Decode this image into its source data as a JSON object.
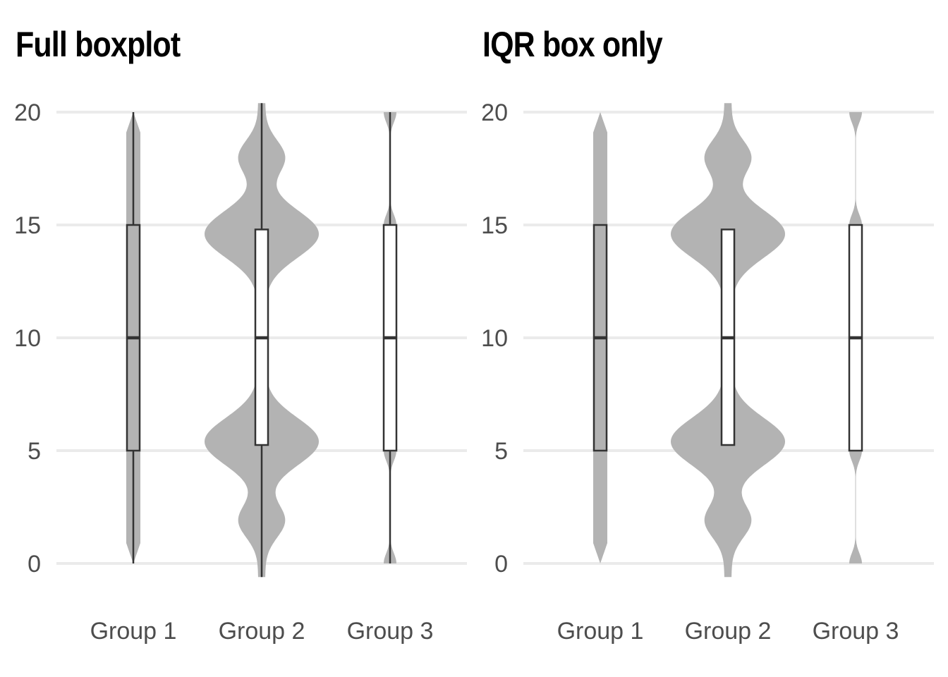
{
  "chart_data": [
    {
      "type": "violin",
      "title": "Full boxplot",
      "categories": [
        "Group 1",
        "Group 2",
        "Group 3"
      ],
      "yticks": [
        0,
        5,
        10,
        15,
        20
      ],
      "ylim": [
        -0.6,
        20.4
      ],
      "grid": "horizontal",
      "boxplot": "full",
      "groups": [
        {
          "name": "Group 1",
          "min": 0,
          "q1": 5,
          "median": 10,
          "q3": 15,
          "max": 20,
          "box_fill": "#b3b3b3",
          "distribution": "uniform"
        },
        {
          "name": "Group 2",
          "min": -0.6,
          "q1": 5.25,
          "median": 10,
          "q3": 14.8,
          "max": 20.4,
          "box_fill": "#ffffff",
          "distribution": "bimodal",
          "modes": [
            5.4,
            14.6
          ],
          "minor_modes": [
            1.9,
            18.0
          ]
        },
        {
          "name": "Group 3",
          "min": 0,
          "q1": 5,
          "median": 10,
          "q3": 15,
          "max": 20,
          "box_fill": "#ffffff",
          "distribution": "spiky",
          "spikes": [
            0,
            5,
            10,
            15,
            20
          ]
        }
      ]
    },
    {
      "type": "violin",
      "title": "IQR box only",
      "categories": [
        "Group 1",
        "Group 2",
        "Group 3"
      ],
      "yticks": [
        0,
        5,
        10,
        15,
        20
      ],
      "ylim": [
        -0.6,
        20.4
      ],
      "grid": "horizontal",
      "boxplot": "iqr-only",
      "groups": [
        {
          "name": "Group 1",
          "q1": 5,
          "median": 10,
          "q3": 15,
          "box_fill": "#b3b3b3",
          "distribution": "uniform"
        },
        {
          "name": "Group 2",
          "q1": 5.25,
          "median": 10,
          "q3": 14.8,
          "box_fill": "#ffffff",
          "distribution": "bimodal",
          "modes": [
            5.4,
            14.6
          ],
          "minor_modes": [
            1.9,
            18.0
          ]
        },
        {
          "name": "Group 3",
          "q1": 5,
          "median": 10,
          "q3": 15,
          "box_fill": "#ffffff",
          "distribution": "spiky",
          "spikes": [
            0,
            5,
            10,
            15,
            20
          ]
        }
      ]
    }
  ],
  "colors": {
    "violin": "#b3b3b3",
    "grid": "#ebebeb",
    "box_stroke": "#333333",
    "tick_text": "#4d4d4d",
    "title": "#000000"
  }
}
